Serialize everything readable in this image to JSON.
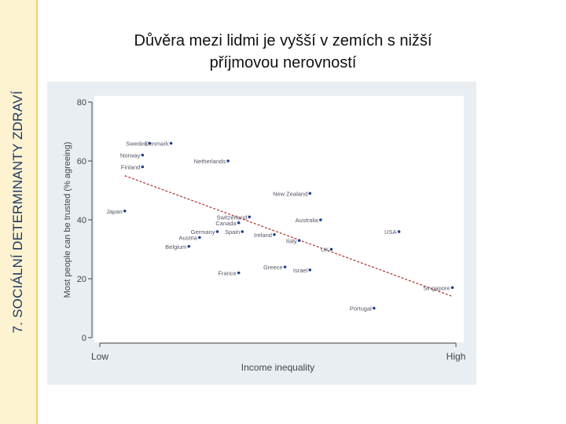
{
  "sidebar": {
    "label": "7. SOCIÁLNÍ DETERMINANTY ZDRAVÍ"
  },
  "slide": {
    "title_line1": "Důvěra mezi lidmi je vyšší v zemích s nižší",
    "title_line2": "příjmovou nerovností"
  },
  "colors": {
    "points": "#1f3f8f",
    "fit_line": "#b03030",
    "panel": "#e9eef3",
    "plot_area": "#ffffff",
    "sidebar": "#fdf3d0",
    "sidebar_text": "#1f3864"
  },
  "chart_data": {
    "type": "scatter",
    "ylabel": "Most people can be trusted (% agreeing)",
    "xlabel": "Income inequality",
    "x_tick_labels": [
      "Low",
      "High"
    ],
    "ylim": [
      0,
      80
    ],
    "yticks": [
      0,
      20,
      40,
      60,
      80
    ],
    "xlim": [
      0,
      100
    ],
    "grid": false,
    "points": [
      {
        "label": "Sweden",
        "x": 14,
        "y": 66
      },
      {
        "label": "Denmark",
        "x": 20,
        "y": 66
      },
      {
        "label": "Norway",
        "x": 12,
        "y": 62
      },
      {
        "label": "Finland",
        "x": 12,
        "y": 58
      },
      {
        "label": "Netherlands",
        "x": 36,
        "y": 60
      },
      {
        "label": "New Zealand",
        "x": 59,
        "y": 49
      },
      {
        "label": "Japan",
        "x": 7,
        "y": 43
      },
      {
        "label": "Switzerland",
        "x": 42,
        "y": 41
      },
      {
        "label": "Australia",
        "x": 62,
        "y": 40
      },
      {
        "label": "Canada",
        "x": 39,
        "y": 39
      },
      {
        "label": "Germany",
        "x": 33,
        "y": 36
      },
      {
        "label": "Spain",
        "x": 40,
        "y": 36
      },
      {
        "label": "Austria",
        "x": 28,
        "y": 34
      },
      {
        "label": "Ireland",
        "x": 49,
        "y": 35
      },
      {
        "label": "USA",
        "x": 84,
        "y": 36
      },
      {
        "label": "Belgium",
        "x": 25,
        "y": 31
      },
      {
        "label": "Italy",
        "x": 56,
        "y": 33
      },
      {
        "label": "UK",
        "x": 65,
        "y": 30
      },
      {
        "label": "Greece",
        "x": 52,
        "y": 24
      },
      {
        "label": "Israel",
        "x": 59,
        "y": 23
      },
      {
        "label": "France",
        "x": 39,
        "y": 22
      },
      {
        "label": "Singapore",
        "x": 99,
        "y": 17
      },
      {
        "label": "Portugal",
        "x": 77,
        "y": 10
      }
    ],
    "fit_line": {
      "x": [
        7,
        99
      ],
      "y": [
        55,
        14
      ]
    }
  }
}
